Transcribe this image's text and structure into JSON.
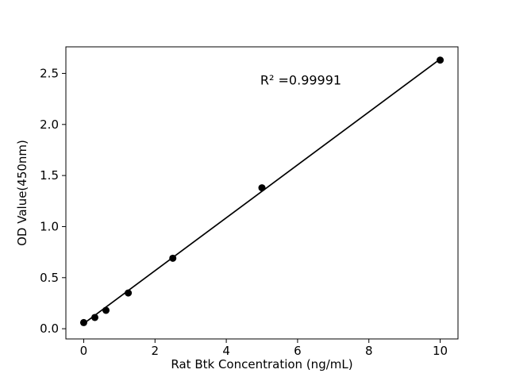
{
  "chart_data": {
    "type": "scatter",
    "title": "",
    "xlabel": "Rat Btk Concentration (ng/mL)",
    "ylabel": "OD Value(450nm)",
    "annotation": "R² =0.99991",
    "x": [
      0,
      0.3125,
      0.625,
      1.25,
      2.5,
      5,
      10
    ],
    "y": [
      0.06,
      0.11,
      0.18,
      0.35,
      0.69,
      1.38,
      2.63
    ],
    "fit_line": {
      "x": [
        0,
        10
      ],
      "y": [
        0.05,
        2.64
      ]
    },
    "x_ticks": [
      0,
      2,
      4,
      6,
      8,
      10
    ],
    "y_ticks": [
      0.0,
      0.5,
      1.0,
      1.5,
      2.0,
      2.5
    ],
    "xlim": [
      -0.5,
      10.5
    ],
    "ylim": [
      -0.1,
      2.76
    ],
    "grid": false,
    "legend": null,
    "colors": {
      "marker": "#000000",
      "line": "#000000",
      "text": "#000000",
      "spine": "#000000",
      "background": "#ffffff"
    }
  }
}
